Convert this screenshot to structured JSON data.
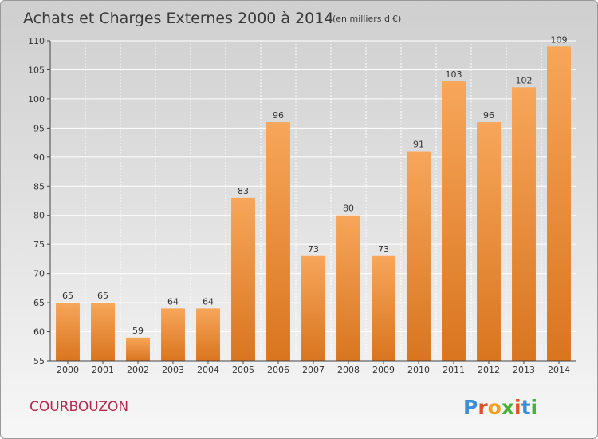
{
  "chart_data": {
    "type": "bar",
    "title": "Achats et Charges Externes 2000 à 2014",
    "subtitle": "(en milliers d'€)",
    "categories": [
      "2000",
      "2001",
      "2002",
      "2003",
      "2004",
      "2005",
      "2006",
      "2007",
      "2008",
      "2009",
      "2010",
      "2011",
      "2012",
      "2013",
      "2014"
    ],
    "values": [
      65,
      65,
      59,
      64,
      64,
      83,
      96,
      73,
      80,
      73,
      91,
      103,
      96,
      102,
      109
    ],
    "ylim": [
      55,
      110
    ],
    "yticks": [
      55,
      60,
      65,
      70,
      75,
      80,
      85,
      90,
      95,
      100,
      105,
      110
    ],
    "grid": true,
    "xlabel": "",
    "ylabel": ""
  },
  "commune": "COURBOUZON",
  "logo": {
    "text": "Proxiti",
    "letter_colors": [
      "#3a8fd8",
      "#e0502a",
      "#f0a020",
      "#4ab03c",
      "#e0502a",
      "#3a8fd8",
      "#4ab03c"
    ]
  },
  "colors": {
    "bar_top": "#f7a65a",
    "bar_bottom": "#d9751f",
    "grid": "#ffffff",
    "axis": "#444444"
  }
}
